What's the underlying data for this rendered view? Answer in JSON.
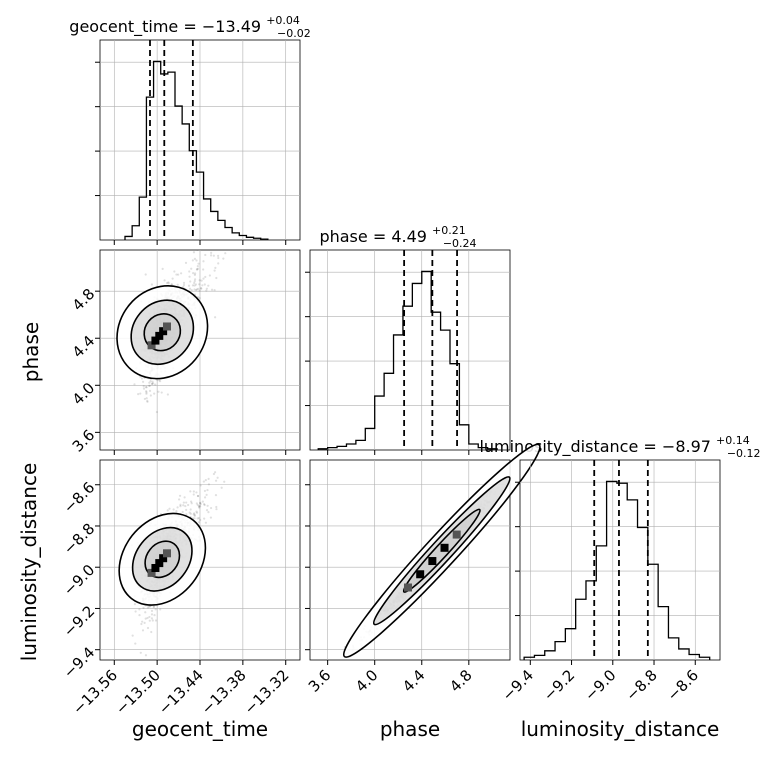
{
  "chart_data": {
    "type": "corner",
    "parameters": [
      "geocent_time",
      "phase",
      "luminosity_distance"
    ],
    "axis_labels": {
      "geocent_time": "geocent_time",
      "phase": "phase",
      "luminosity_distance": "luminosity_distance"
    },
    "ranges": {
      "geocent_time": [
        -13.58,
        -13.3
      ],
      "phase": [
        3.45,
        5.15
      ],
      "luminosity_distance": [
        -9.45,
        -8.48
      ]
    },
    "ticks": {
      "geocent_time": [
        -13.56,
        -13.5,
        -13.44,
        -13.38,
        -13.32
      ],
      "phase": [
        3.6,
        4.0,
        4.4,
        4.8
      ],
      "luminosity_distance": [
        -9.4,
        -9.2,
        -9.0,
        -8.8,
        -8.6
      ]
    },
    "tick_labels": {
      "geocent_time": [
        "−13.56",
        "−13.50",
        "−13.44",
        "−13.38",
        "−13.32"
      ],
      "phase": [
        "3.6",
        "4.0",
        "4.4",
        "4.8"
      ],
      "luminosity_distance": [
        "−9.4",
        "−9.2",
        "−9.0",
        "−8.8",
        "−8.6"
      ]
    },
    "diagonal_titles": [
      {
        "param": "geocent_time",
        "name": "geocent_time",
        "median": "−13.49",
        "plus": "+0.04",
        "minus": "−0.02"
      },
      {
        "param": "phase",
        "name": "phase",
        "median": "4.49",
        "plus": "+0.21",
        "minus": "−0.24"
      },
      {
        "param": "luminosity_distance",
        "name": "luminosity_distance",
        "median": "−8.97",
        "plus": "+0.14",
        "minus": "−0.12"
      }
    ],
    "quantiles": {
      "geocent_time": [
        -13.51,
        -13.49,
        -13.45
      ],
      "phase": [
        4.25,
        4.49,
        4.7
      ],
      "luminosity_distance": [
        -9.09,
        -8.97,
        -8.83
      ]
    },
    "histograms": {
      "geocent_time": {
        "edges": [
          -13.545,
          -13.535,
          -13.525,
          -13.515,
          -13.505,
          -13.495,
          -13.485,
          -13.475,
          -13.465,
          -13.455,
          -13.445,
          -13.435,
          -13.425,
          -13.415,
          -13.405,
          -13.395,
          -13.385,
          -13.375,
          -13.365,
          -13.355,
          -13.345
        ],
        "counts": [
          0.2,
          0.8,
          2.4,
          8.0,
          10.0,
          9.3,
          9.4,
          7.5,
          6.5,
          5.0,
          3.8,
          2.3,
          1.6,
          1.1,
          0.7,
          0.4,
          0.25,
          0.15,
          0.1,
          0.05
        ]
      },
      "phase": {
        "edges": [
          3.52,
          3.6,
          3.68,
          3.76,
          3.84,
          3.92,
          4.0,
          4.08,
          4.16,
          4.24,
          4.32,
          4.4,
          4.48,
          4.56,
          4.64,
          4.72,
          4.8,
          4.88,
          4.96,
          5.04
        ],
        "counts": [
          0.1,
          0.2,
          0.3,
          0.5,
          0.8,
          1.8,
          4.5,
          6.4,
          9.6,
          12.0,
          13.9,
          14.9,
          11.5,
          10.0,
          7.2,
          2.1,
          0.5,
          0.2,
          0.1
        ]
      },
      "luminosity_distance": {
        "edges": [
          -9.43,
          -9.38,
          -9.33,
          -9.28,
          -9.23,
          -9.18,
          -9.13,
          -9.08,
          -9.03,
          -8.98,
          -8.93,
          -8.88,
          -8.83,
          -8.78,
          -8.73,
          -8.68,
          -8.63,
          -8.58,
          -8.53
        ],
        "counts": [
          0.15,
          0.25,
          0.5,
          1.0,
          1.7,
          3.3,
          4.3,
          6.2,
          9.7,
          9.6,
          8.7,
          7.2,
          5.2,
          2.9,
          1.2,
          0.6,
          0.3,
          0.15
        ]
      }
    },
    "scatter_2d": {
      "geocent_time__phase": {
        "center": [
          -13.497,
          4.42
        ],
        "spread_x": 0.012,
        "slope": 7.4,
        "spread_y": 0.14,
        "tail": true
      },
      "geocent_time__luminosity_distance": {
        "center": [
          -13.497,
          -8.98
        ],
        "spread_x": 0.012,
        "slope": 4.4,
        "spread_y": 0.07,
        "tail": true
      },
      "phase__luminosity_distance": {
        "center": [
          4.49,
          -8.97
        ],
        "spread_x": 0.23,
        "slope": 0.62,
        "spread_y": 0.02,
        "tail": false
      }
    },
    "grid": true,
    "line_color": "#000000",
    "point_color": "#555555",
    "grid_color": "#b0b0b0"
  }
}
